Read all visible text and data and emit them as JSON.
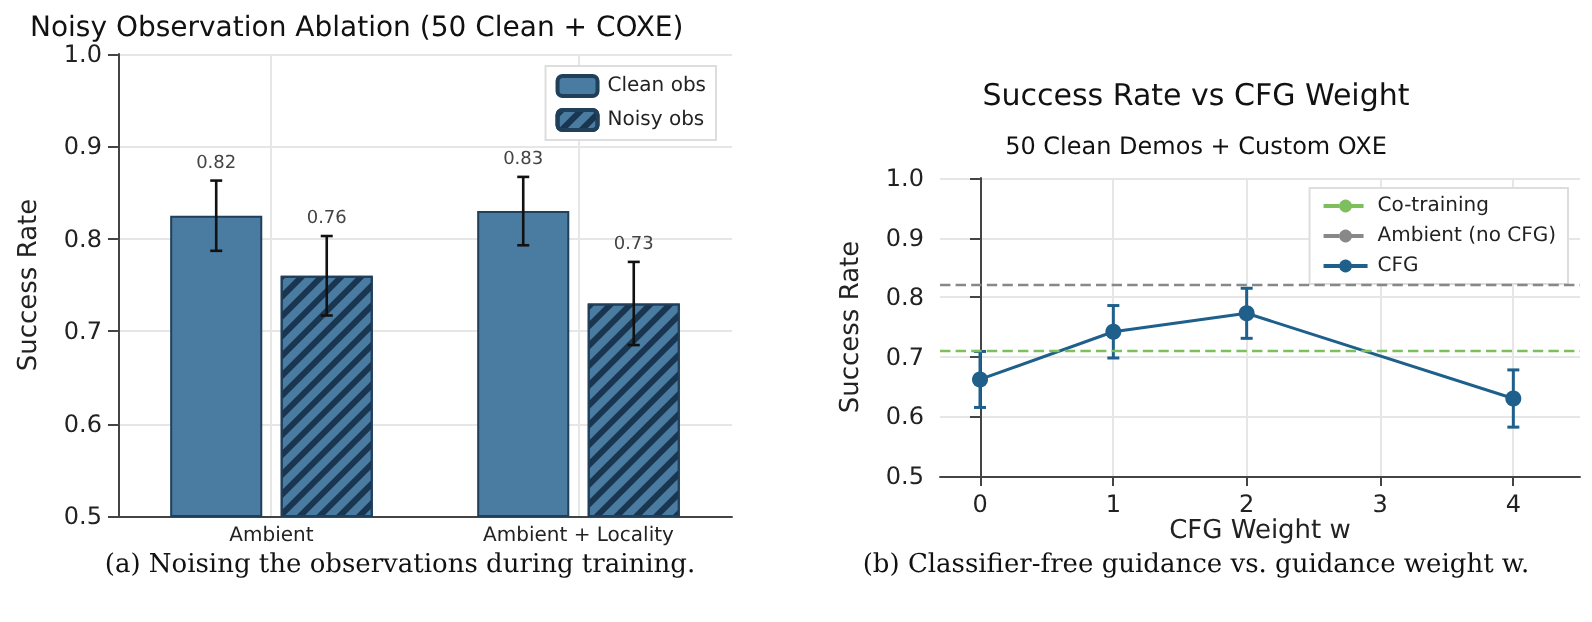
{
  "chart_data": [
    {
      "type": "bar",
      "title": "Noisy Observation Ablation (50 Clean + COXE)",
      "ylabel": "Success Rate",
      "categories": [
        "Ambient",
        "Ambient + Locality"
      ],
      "series": [
        {
          "name": "Clean obs",
          "color": "#4a7ba0",
          "values": [
            0.825,
            0.83
          ],
          "errors": [
            0.038,
            0.037
          ],
          "value_labels": [
            "0.82",
            "0.83"
          ]
        },
        {
          "name": "Noisy obs",
          "color": "#4a7ba0",
          "values": [
            0.76,
            0.73
          ],
          "errors": [
            0.043,
            0.045
          ],
          "value_labels": [
            "0.76",
            "0.73"
          ]
        }
      ],
      "ylim": [
        0.5,
        1.0
      ],
      "yticks": [
        0.5,
        0.6,
        0.7,
        0.8,
        0.9,
        {
          "value": 1.0,
          "label": "1.0"
        }
      ],
      "grid": true,
      "legend": "top right",
      "annotations": [
        "(a) Noising the observations during training."
      ]
    },
    {
      "type": "line",
      "title": "Success Rate vs CFG Weight",
      "subtitle": "50 Clean Demos + Custom OXE",
      "xlabel": "CFG Weight w",
      "ylabel": "Success Rate",
      "x": [
        0,
        1,
        2,
        4
      ],
      "series": [
        {
          "name": "CFG",
          "color": "#1f5f8b",
          "values": [
            0.662,
            0.742,
            0.773,
            0.63
          ],
          "errors": [
            0.047,
            0.044,
            0.042,
            0.048
          ]
        }
      ],
      "xlim": [
        -0.3,
        4.5
      ],
      "xticks": [
        0,
        1,
        2,
        3,
        4
      ],
      "ylim": [
        0.5,
        1.0
      ],
      "yticks": [
        0.5,
        0.6,
        0.7,
        0.8,
        0.9,
        {
          "value": 1.0,
          "label": "1.0"
        }
      ],
      "ref_lines": [
        {
          "axis": "y",
          "value": 0.715,
          "label": "Co-training",
          "color": "#7cbf5c",
          "line_style": "dashed"
        },
        {
          "axis": "y",
          "value": 0.825,
          "label": "Ambient (no CFG)",
          "color": "#888888",
          "line_style": "dashed"
        }
      ],
      "grid": true,
      "legend": "top right",
      "marker": "circle",
      "line_style": "solid",
      "annotations": [
        "(b) Classifier-free guidance vs. guidance weight w."
      ]
    }
  ]
}
